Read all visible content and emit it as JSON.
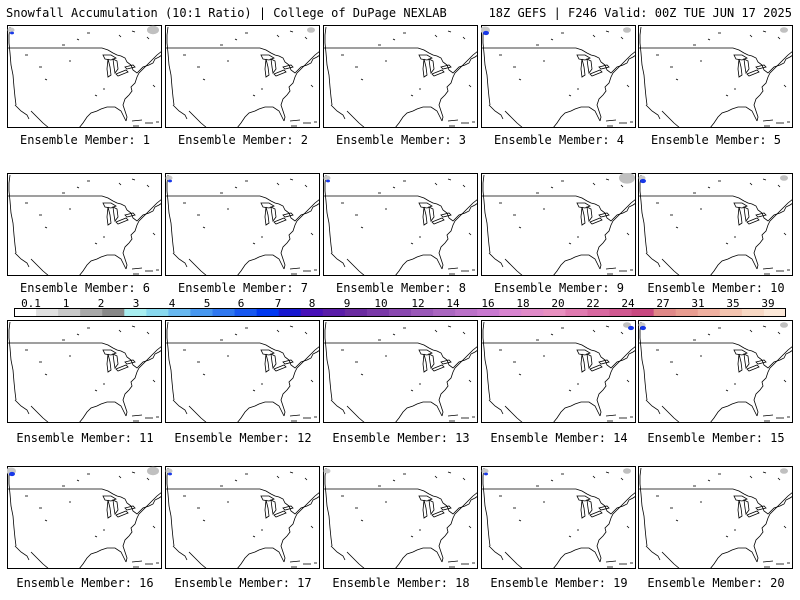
{
  "header": {
    "left": "Snowfall Accumulation (10:1 Ratio) | College of DuPage NEXLAB",
    "right": "18Z GEFS | F246 Valid: 00Z TUE JUN 17 2025"
  },
  "member_prefix": "Ensemble Member: ",
  "members": [
    "Ensemble Member: 1",
    "Ensemble Member: 2",
    "Ensemble Member: 3",
    "Ensemble Member: 4",
    "Ensemble Member: 5",
    "Ensemble Member: 6",
    "Ensemble Member: 7",
    "Ensemble Member: 8",
    "Ensemble Member: 9",
    "Ensemble Member: 10",
    "Ensemble Member: 11",
    "Ensemble Member: 12",
    "Ensemble Member: 13",
    "Ensemble Member: 14",
    "Ensemble Member: 15",
    "Ensemble Member: 16",
    "Ensemble Member: 17",
    "Ensemble Member: 18",
    "Ensemble Member: 19",
    "Ensemble Member: 20"
  ],
  "color_scale": {
    "labels": [
      "0.1",
      "1",
      "2",
      "3",
      "4",
      "5",
      "6",
      "7",
      "8",
      "9",
      "10",
      "12",
      "14",
      "16",
      "18",
      "20",
      "22",
      "24",
      "27",
      "31",
      "35",
      "39"
    ],
    "colors": [
      "#ffffff",
      "#e0e0e0",
      "#c8c8c8",
      "#a8a8a8",
      "#888888",
      "#a8eef0",
      "#88d8ee",
      "#68b8f0",
      "#4898f0",
      "#3078f0",
      "#1858f0",
      "#0038f0",
      "#1818d0",
      "#4810b8",
      "#5a1ca8",
      "#6a2aa0",
      "#7a38a8",
      "#8a48b0",
      "#9a58b8",
      "#aa66c0",
      "#ba70c8",
      "#c878d0",
      "#d884d0",
      "#e08ac8",
      "#e890c0",
      "#e07ab0",
      "#d868a0",
      "#d05890",
      "#c84880",
      "#e08888",
      "#e89c90",
      "#f0b0a0",
      "#f4c4b0",
      "#f8d8c4",
      "#fce8d8"
    ]
  },
  "snow_patches": [
    {
      "panel": 1,
      "nw": {
        "gray": 1,
        "blue": 1
      },
      "ne": {
        "gray": 2
      }
    },
    {
      "panel": 2,
      "nw": {},
      "ne": {
        "gray": 1
      }
    },
    {
      "panel": 3,
      "nw": {},
      "ne": {}
    },
    {
      "panel": 4,
      "nw": {
        "gray": 2,
        "blue": 2
      },
      "ne": {
        "gray": 1
      }
    },
    {
      "panel": 5,
      "nw": {},
      "ne": {
        "gray": 1
      }
    },
    {
      "panel": 6,
      "nw": {},
      "ne": {}
    },
    {
      "panel": 7,
      "nw": {
        "gray": 1,
        "blue": 1
      },
      "ne": {}
    },
    {
      "panel": 8,
      "nw": {
        "gray": 1,
        "blue": 1
      },
      "ne": {}
    },
    {
      "panel": 9,
      "nw": {},
      "ne": {
        "gray": 3
      }
    },
    {
      "panel": 10,
      "nw": {
        "gray": 1,
        "blue": 2
      },
      "ne": {
        "gray": 1
      }
    },
    {
      "panel": 11,
      "nw": {},
      "ne": {}
    },
    {
      "panel": 12,
      "nw": {},
      "ne": {}
    },
    {
      "panel": 13,
      "nw": {},
      "ne": {}
    },
    {
      "panel": 14,
      "nw": {},
      "ne": {
        "gray": 1,
        "blue": 2
      }
    },
    {
      "panel": 15,
      "nw": {
        "gray": 1,
        "blue": 2
      },
      "ne": {
        "gray": 1
      }
    },
    {
      "panel": 16,
      "nw": {
        "gray": 2,
        "blue": 2
      },
      "ne": {
        "gray": 2
      }
    },
    {
      "panel": 17,
      "nw": {
        "gray": 1,
        "blue": 1
      },
      "ne": {}
    },
    {
      "panel": 18,
      "nw": {
        "gray": 1
      },
      "ne": {}
    },
    {
      "panel": 19,
      "nw": {
        "gray": 1,
        "blue": 1
      },
      "ne": {
        "gray": 1
      }
    },
    {
      "panel": 20,
      "nw": {},
      "ne": {
        "gray": 1
      }
    }
  ]
}
